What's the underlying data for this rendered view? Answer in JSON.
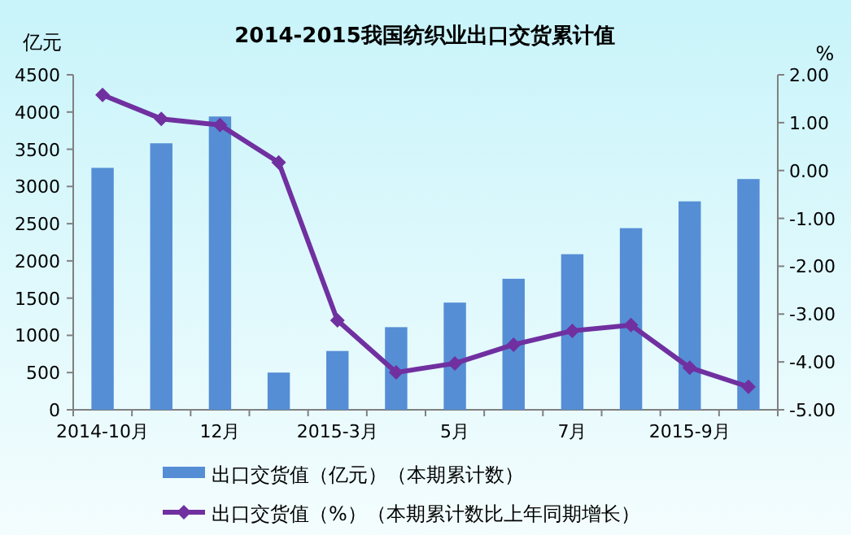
{
  "chart_data": {
    "type": "bar",
    "title": "2014-2015我国纺织业出口交货累计值",
    "ylabel": "亿元",
    "y2label": "%",
    "categories": [
      "2014-10月",
      null,
      "12月",
      null,
      "2015-3月",
      null,
      "5月",
      null,
      "7月",
      null,
      "2015-9月",
      null
    ],
    "series": [
      {
        "name": "出口交货值（亿元）（本期累计数）",
        "color": "#558ed5",
        "values": [
          3250,
          3580,
          3940,
          500,
          790,
          1110,
          1440,
          1760,
          2090,
          2440,
          2800,
          3100
        ]
      },
      {
        "name": "出口交货值（%）（本期累计数比上年同期增长）",
        "type": "line",
        "axis": "y2",
        "marker": "diamond",
        "color": "#7030a0",
        "values": [
          1.58,
          1.08,
          0.95,
          0.17,
          -3.13,
          -4.22,
          -4.03,
          -3.64,
          -3.35,
          -3.23,
          -4.12,
          -4.52
        ]
      }
    ],
    "ylim": [
      0,
      4500
    ],
    "yticks": [
      0,
      500,
      1000,
      1500,
      2000,
      2500,
      3000,
      3500,
      4000,
      4500
    ],
    "y2lim": [
      -5,
      2
    ],
    "y2ticks": [
      {
        "value": -5,
        "label": "-5.00"
      },
      {
        "value": -4,
        "label": "-4.00"
      },
      {
        "value": -3,
        "label": "-3.00"
      },
      {
        "value": -2,
        "label": "-2.00"
      },
      {
        "value": -1,
        "label": "-1.00"
      },
      {
        "value": 0,
        "label": "0.00"
      },
      {
        "value": 1,
        "label": "1.00"
      },
      {
        "value": 2,
        "label": "2.00"
      }
    ],
    "legend": "bottom"
  }
}
